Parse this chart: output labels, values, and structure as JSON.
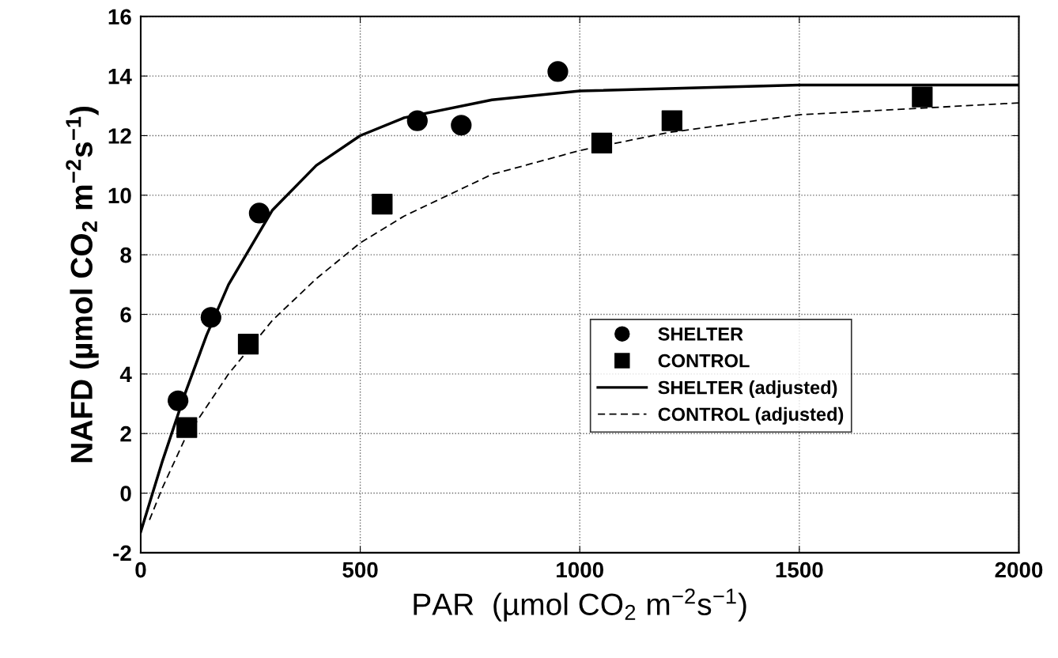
{
  "chart_data": {
    "type": "scatter",
    "xlabel": "PAR  (µmol CO$_{2}$ m$^{−2}$s$^{−1}$)",
    "ylabel": "NAFD (µmol CO$_{2}$ m$^{−2}$s$^{−1}$)",
    "xlim": [
      0,
      2000
    ],
    "xticks": [
      0,
      500,
      1000,
      1500,
      2000
    ],
    "ylim": [
      -2,
      16
    ],
    "yticks": [
      -2,
      0,
      2,
      4,
      6,
      8,
      10,
      12,
      14,
      16
    ],
    "grid": true,
    "legend": "right",
    "series": [
      {
        "name": "SHELTER",
        "marker": "circle",
        "color": "#000000",
        "x": [
          85,
          160,
          270,
          630,
          730,
          950
        ],
        "values": [
          3.1,
          5.9,
          9.4,
          12.5,
          12.35,
          14.15
        ]
      },
      {
        "name": "CONTROL",
        "marker": "square",
        "color": "#000000",
        "x": [
          105,
          245,
          550,
          1050,
          1210,
          1780
        ],
        "values": [
          2.2,
          5.0,
          9.7,
          11.75,
          12.5,
          13.3
        ]
      },
      {
        "name": "SHELTER (adjusted)",
        "type": "line",
        "line_style": "solid",
        "color": "#000000",
        "x": [
          0,
          50,
          100,
          150,
          200,
          300,
          400,
          500,
          600,
          800,
          1000,
          1500,
          2000
        ],
        "values": [
          -1.3,
          1.1,
          3.3,
          5.3,
          7.0,
          9.5,
          11.0,
          12.0,
          12.6,
          13.2,
          13.5,
          13.7,
          13.7
        ]
      },
      {
        "name": "CONTROL (adjusted)",
        "type": "line",
        "line_style": "dashed",
        "color": "#000000",
        "x": [
          20,
          50,
          100,
          200,
          300,
          400,
          500,
          600,
          800,
          1000,
          1200,
          1500,
          2000
        ],
        "values": [
          -0.9,
          0.2,
          1.8,
          4.0,
          5.8,
          7.2,
          8.4,
          9.3,
          10.7,
          11.5,
          12.1,
          12.7,
          13.1
        ]
      }
    ]
  }
}
